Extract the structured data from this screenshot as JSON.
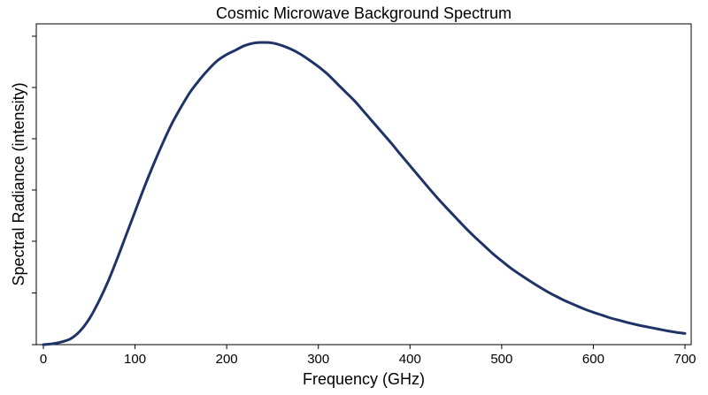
{
  "chart_data": {
    "type": "line",
    "title": "Cosmic Microwave Background Spectrum",
    "xlabel": "Frequency (GHz)",
    "ylabel": "Spectral Radiance (intensity)",
    "xlim": [
      0,
      700
    ],
    "ylim": [
      0,
      1.0
    ],
    "x_ticks": [
      0,
      100,
      200,
      300,
      400,
      500,
      600,
      700
    ],
    "x_tick_labels": [
      "0",
      "100",
      "200",
      "300",
      "400",
      "500",
      "600",
      "700"
    ],
    "y_ticks": [
      0,
      0.17,
      0.34,
      0.51,
      0.68,
      0.85,
      1.02
    ],
    "y_tick_labels": [
      "",
      "",
      "",
      "",
      "",
      "",
      ""
    ],
    "grid": false,
    "series": [
      {
        "color": "#1f3366",
        "x": [
          0,
          10,
          20,
          30,
          40,
          50,
          60,
          70,
          80,
          90,
          100,
          110,
          120,
          130,
          140,
          150,
          160,
          170,
          180,
          190,
          200,
          210,
          220,
          230,
          240,
          250,
          260,
          270,
          280,
          290,
          300,
          310,
          320,
          330,
          340,
          350,
          360,
          370,
          380,
          390,
          400,
          410,
          420,
          430,
          440,
          450,
          460,
          470,
          480,
          490,
          500,
          510,
          520,
          530,
          540,
          550,
          560,
          570,
          580,
          590,
          600,
          610,
          620,
          630,
          640,
          650,
          660,
          670,
          680,
          690,
          700
        ],
        "y": [
          0,
          0.003,
          0.009,
          0.02,
          0.045,
          0.085,
          0.14,
          0.205,
          0.28,
          0.36,
          0.44,
          0.52,
          0.595,
          0.665,
          0.73,
          0.785,
          0.835,
          0.875,
          0.91,
          0.94,
          0.96,
          0.975,
          0.99,
          0.998,
          1.0,
          0.998,
          0.99,
          0.978,
          0.962,
          0.942,
          0.92,
          0.895,
          0.865,
          0.835,
          0.805,
          0.77,
          0.735,
          0.7,
          0.665,
          0.628,
          0.592,
          0.556,
          0.52,
          0.485,
          0.452,
          0.42,
          0.388,
          0.358,
          0.33,
          0.302,
          0.277,
          0.253,
          0.232,
          0.212,
          0.193,
          0.175,
          0.159,
          0.144,
          0.131,
          0.118,
          0.107,
          0.097,
          0.087,
          0.079,
          0.071,
          0.064,
          0.058,
          0.052,
          0.046,
          0.041,
          0.037
        ]
      }
    ]
  }
}
